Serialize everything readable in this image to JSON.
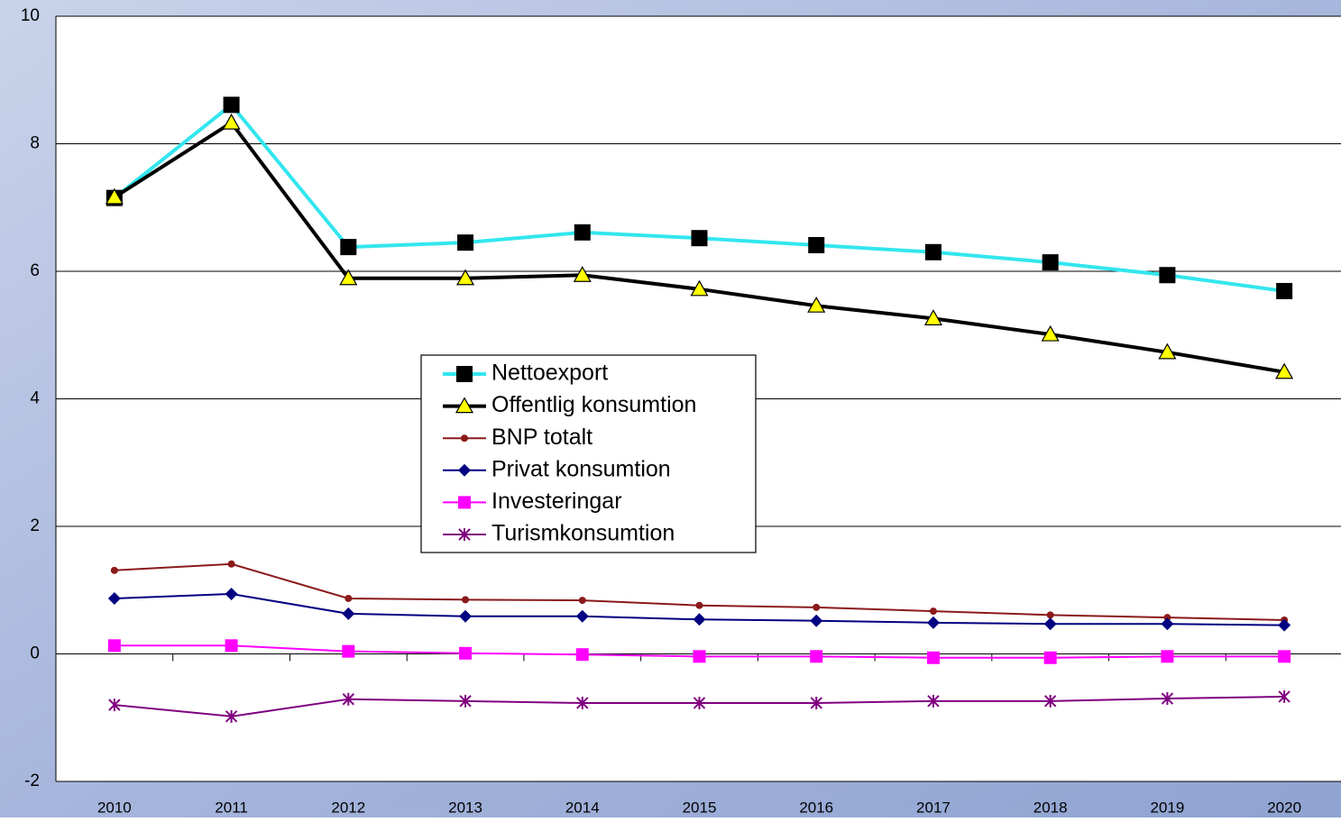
{
  "chart_data": {
    "type": "line",
    "categories": [
      "2010",
      "2011",
      "2012",
      "2013",
      "2014",
      "2015",
      "2016",
      "2017",
      "2018",
      "2019",
      "2020"
    ],
    "ylim": [
      -2,
      10
    ],
    "yticks": [
      -2,
      0,
      2,
      4,
      6,
      8,
      10
    ],
    "grid": true,
    "series": [
      {
        "name": "Nettoexport",
        "color": "#33e6ee",
        "marker": "square",
        "marker_color": "#000000",
        "values": [
          7.15,
          8.61,
          6.38,
          6.45,
          6.61,
          6.52,
          6.41,
          6.3,
          6.14,
          5.94,
          5.69
        ]
      },
      {
        "name": "Offentlig konsumtion",
        "color": "#000000",
        "marker": "triangle",
        "marker_color": "#ffff00",
        "values": [
          7.16,
          8.33,
          5.89,
          5.89,
          5.94,
          5.72,
          5.46,
          5.26,
          5.01,
          4.73,
          4.42
        ]
      },
      {
        "name": "BNP totalt",
        "color": "#8b1a1a",
        "marker": "circle",
        "marker_color": "#8b1a1a",
        "values": [
          1.31,
          1.41,
          0.87,
          0.85,
          0.84,
          0.76,
          0.73,
          0.67,
          0.61,
          0.57,
          0.53
        ]
      },
      {
        "name": "Privat konsumtion",
        "color": "#000080",
        "marker": "diamond",
        "marker_color": "#000080",
        "values": [
          0.87,
          0.94,
          0.63,
          0.59,
          0.59,
          0.54,
          0.52,
          0.49,
          0.47,
          0.47,
          0.45
        ]
      },
      {
        "name": "Investeringar",
        "color": "#ff00ff",
        "marker": "square",
        "marker_color": "#ff00ff",
        "values": [
          0.13,
          0.13,
          0.04,
          0.01,
          -0.01,
          -0.04,
          -0.04,
          -0.06,
          -0.06,
          -0.04,
          -0.04
        ]
      },
      {
        "name": "Turismkonsumtion",
        "color": "#800080",
        "marker": "star",
        "marker_color": "#800080",
        "values": [
          -0.8,
          -0.98,
          -0.71,
          -0.74,
          -0.77,
          -0.77,
          -0.77,
          -0.74,
          -0.74,
          -0.7,
          -0.67
        ]
      }
    ]
  }
}
